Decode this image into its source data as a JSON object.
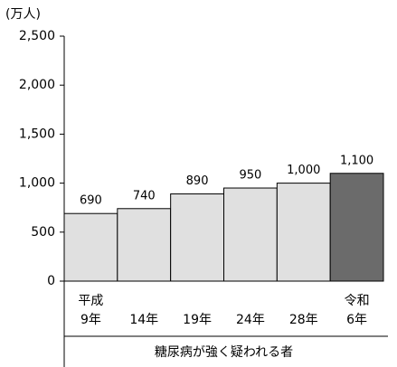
{
  "chart_data": {
    "type": "bar",
    "unit_label": "(万人)",
    "categories": [
      "平成\n9年",
      "14年",
      "19年",
      "24年",
      "28年",
      "令和\n6年"
    ],
    "values": [
      690,
      740,
      890,
      950,
      1000,
      1100
    ],
    "value_labels": [
      "690",
      "740",
      "890",
      "950",
      "1,000",
      "1,100"
    ],
    "colors": [
      "#e0e0e0",
      "#e0e0e0",
      "#e0e0e0",
      "#e0e0e0",
      "#e0e0e0",
      "#6b6b6b"
    ],
    "x_group_label": "糖尿病が強く疑われる者",
    "ylim": [
      0,
      2500
    ],
    "yticks": [
      0,
      {
        "value": 500,
        "label": "500"
      },
      {
        "value": 1000,
        "label": "1,000"
      },
      {
        "value": 1500,
        "label": "1,500"
      },
      {
        "value": 2000,
        "label": "2,000"
      },
      {
        "value": 2500,
        "label": "2,500"
      }
    ],
    "grid": false
  }
}
